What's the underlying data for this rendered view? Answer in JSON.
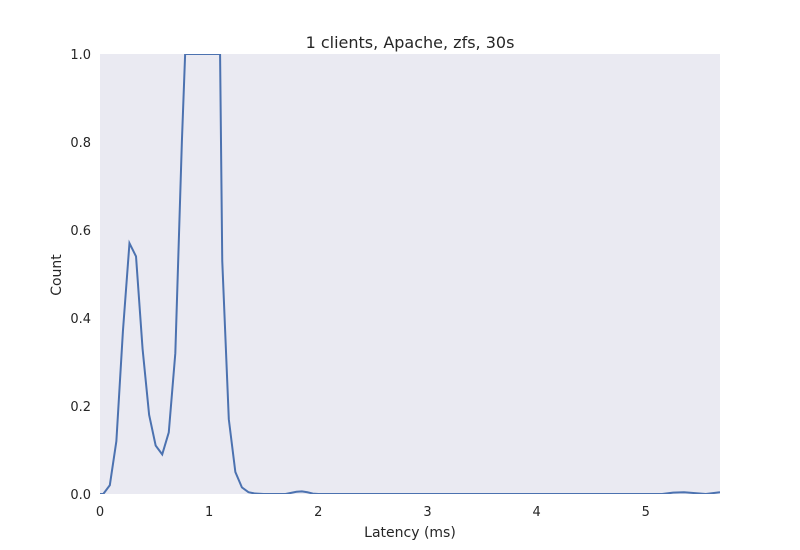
{
  "chart_data": {
    "type": "line",
    "title": "1 clients, Apache, zfs, 30s",
    "xlabel": "Latency (ms)",
    "ylabel": "Count",
    "xlim": [
      0,
      5.68
    ],
    "ylim": [
      0,
      1.0
    ],
    "xticks": [
      "0",
      "1",
      "2",
      "3",
      "4",
      "5"
    ],
    "yticks": [
      "0.0",
      "0.2",
      "0.4",
      "0.6",
      "0.8",
      "1.0"
    ],
    "grid": false,
    "background": "#eaeaf2",
    "line_color": "#4c72b0",
    "series": [
      {
        "x": [
          0.0,
          0.03,
          0.09,
          0.15,
          0.21,
          0.27,
          0.33,
          0.39,
          0.45,
          0.51,
          0.57,
          0.63,
          0.69,
          0.75,
          0.78,
          0.81,
          0.87,
          0.93,
          0.99,
          1.05,
          1.1,
          1.12,
          1.18,
          1.24,
          1.3,
          1.36,
          1.42,
          1.5,
          1.6,
          1.7,
          1.8,
          1.85,
          1.9,
          1.95,
          2.0,
          2.2,
          2.5,
          3.0,
          3.5,
          4.0,
          4.5,
          5.0,
          5.15,
          5.25,
          5.35,
          5.45,
          5.55,
          5.68
        ],
        "y": [
          0.0,
          0.0,
          0.02,
          0.12,
          0.37,
          0.57,
          0.54,
          0.33,
          0.18,
          0.11,
          0.09,
          0.14,
          0.32,
          0.8,
          1.0,
          1.0,
          1.0,
          1.0,
          1.0,
          1.0,
          1.0,
          0.53,
          0.17,
          0.05,
          0.015,
          0.004,
          0.001,
          0.0,
          0.0,
          0.0,
          0.005,
          0.006,
          0.004,
          0.001,
          0.0,
          0.0,
          0.0,
          0.0,
          0.0,
          0.0,
          0.0,
          0.0,
          0.0,
          0.003,
          0.004,
          0.002,
          0.0,
          0.004
        ]
      }
    ]
  }
}
